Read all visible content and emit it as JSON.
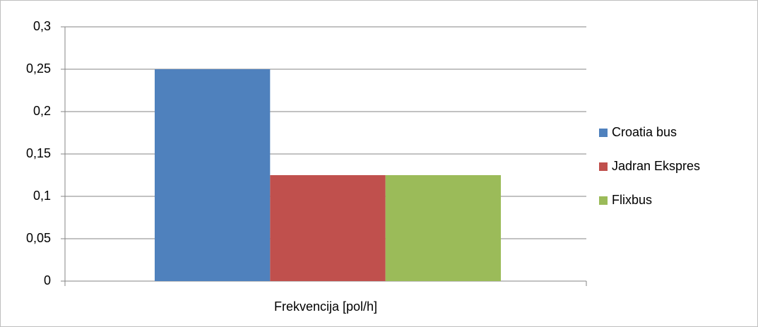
{
  "chart_data": {
    "type": "bar",
    "categories": [
      "Frekvencija [pol/h]"
    ],
    "series": [
      {
        "name": "Croatia bus",
        "color": "#4f81bd",
        "values": [
          0.25
        ]
      },
      {
        "name": "Jadran Ekspres",
        "color": "#c0504d",
        "values": [
          0.125
        ]
      },
      {
        "name": "Flixbus",
        "color": "#9bbb59",
        "values": [
          0.125
        ]
      }
    ],
    "ylim": [
      0,
      0.3
    ],
    "yticks": [
      0,
      {
        "value": 0.05,
        "label": "0,05"
      },
      {
        "value": 0.1,
        "label": "0,1"
      },
      {
        "value": 0.15,
        "label": "0,15"
      },
      {
        "value": 0.2,
        "label": "0,2"
      },
      {
        "value": 0.25,
        "label": "0,25"
      },
      {
        "value": 0.3,
        "label": "0,3"
      }
    ],
    "grid": true,
    "legend": "right"
  }
}
